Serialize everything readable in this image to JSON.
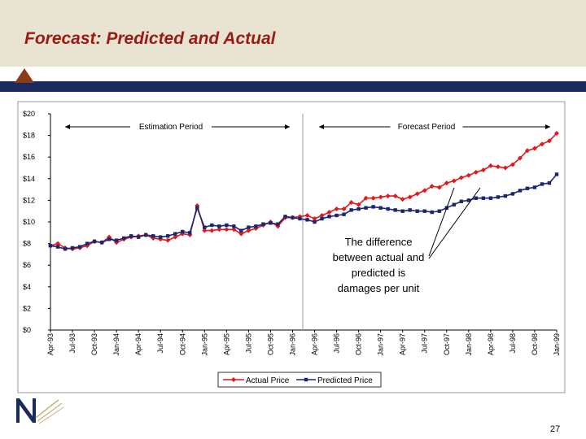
{
  "title": "Forecast: Predicted and Actual",
  "page_number": "27",
  "annotation": "The difference between actual and predicted is damages per unit",
  "colors": {
    "actual": "#e0191a",
    "predicted": "#1a2670",
    "title": "#9c1a14",
    "band": "#1b2a5c"
  },
  "chart_data": {
    "type": "line",
    "title": "",
    "xlabel": "",
    "ylabel": "",
    "ylim": [
      0,
      20
    ],
    "y_ticks": [
      "$0",
      "$2",
      "$4",
      "$6",
      "$8",
      "$10",
      "$12",
      "$14",
      "$16",
      "$18",
      "$20"
    ],
    "x_tick_labels": [
      "Apr-93",
      "Jul-93",
      "Oct-93",
      "Jan-94",
      "Apr-94",
      "Jul-94",
      "Oct-94",
      "Jan-95",
      "Apr-95",
      "Jul-95",
      "Oct-95",
      "Jan-96",
      "Apr-96",
      "Jul-96",
      "Oct-96",
      "Jan-97",
      "Apr-97",
      "Jul-97",
      "Oct-97",
      "Jan-98",
      "Apr-98",
      "Jul-98",
      "Oct-98",
      "Jan-99"
    ],
    "period_labels": {
      "estimation": "Estimation Period",
      "forecast": "Forecast Period"
    },
    "legend_placement": "bottom",
    "grid": false,
    "series": [
      {
        "name": "Actual Price",
        "values": [
          7.8,
          8.0,
          7.6,
          7.5,
          7.6,
          7.8,
          8.2,
          8.1,
          8.6,
          8.1,
          8.4,
          8.6,
          8.7,
          8.8,
          8.5,
          8.4,
          8.3,
          8.6,
          8.9,
          8.8,
          11.5,
          9.2,
          9.2,
          9.3,
          9.3,
          9.3,
          8.9,
          9.2,
          9.4,
          9.7,
          10.0,
          9.6,
          10.4,
          10.4,
          10.5,
          10.6,
          10.3,
          10.6,
          10.9,
          11.2,
          11.2,
          11.8,
          11.6,
          12.2,
          12.2,
          12.3,
          12.4,
          12.4,
          12.1,
          12.3,
          12.6,
          12.9,
          13.3,
          13.2,
          13.6,
          13.8,
          14.1,
          14.3,
          14.6,
          14.8,
          15.2,
          15.1,
          15.0,
          15.3,
          15.9,
          16.6,
          16.8,
          17.2,
          17.5,
          18.2
        ]
      },
      {
        "name": "Predicted Price",
        "values": [
          7.8,
          7.7,
          7.5,
          7.6,
          7.7,
          8.0,
          8.2,
          8.1,
          8.4,
          8.3,
          8.5,
          8.7,
          8.6,
          8.8,
          8.7,
          8.6,
          8.7,
          8.9,
          9.1,
          9.0,
          11.3,
          9.5,
          9.7,
          9.6,
          9.7,
          9.6,
          9.2,
          9.5,
          9.6,
          9.8,
          9.9,
          9.8,
          10.5,
          10.4,
          10.3,
          10.2,
          10.0,
          10.3,
          10.5,
          10.6,
          10.7,
          11.1,
          11.2,
          11.3,
          11.4,
          11.3,
          11.2,
          11.1,
          11.0,
          11.1,
          11.0,
          11.0,
          10.9,
          11.0,
          11.3,
          11.6,
          11.9,
          12.0,
          12.2,
          12.2,
          12.2,
          12.3,
          12.4,
          12.6,
          12.9,
          13.1,
          13.2,
          13.5,
          13.6,
          14.4
        ]
      }
    ]
  }
}
